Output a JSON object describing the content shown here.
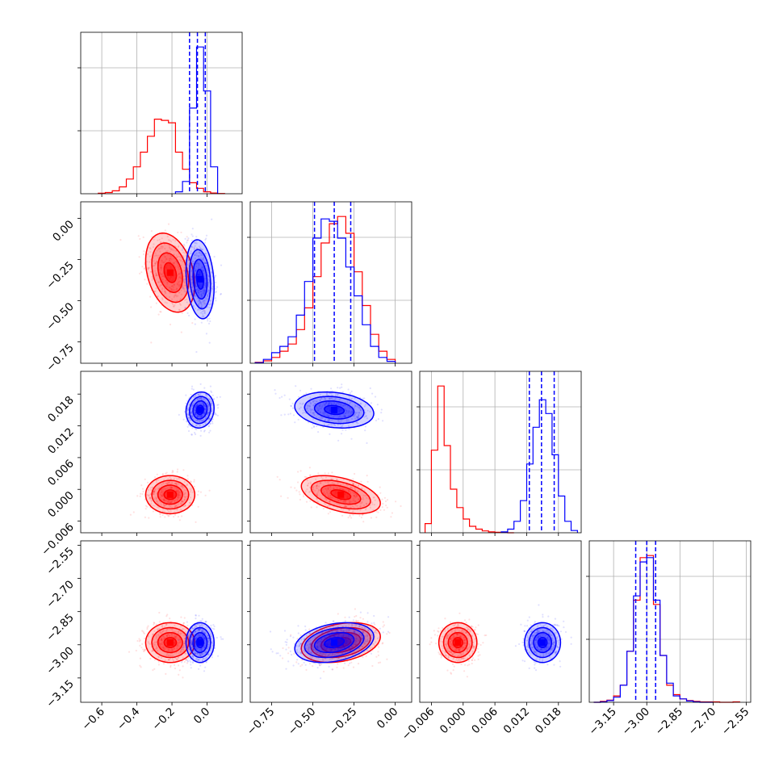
{
  "chart_data": {
    "type": "scatter",
    "title": "",
    "grid": true,
    "series_colors": {
      "red": "#ff0000",
      "blue": "#0000ff"
    },
    "parameters": [
      {
        "ticks": [
          -0.6,
          -0.4,
          -0.2,
          0.0
        ],
        "tick_labels": [
          "−0.6",
          "−0.4",
          "−0.2",
          "0.0"
        ],
        "range": [
          -0.72,
          0.2
        ]
      },
      {
        "ticks": [
          -0.75,
          -0.5,
          -0.25,
          0.0
        ],
        "tick_labels": [
          "−0.75",
          "−0.50",
          "−0.25",
          "0.00"
        ],
        "range": [
          -0.88,
          0.1
        ]
      },
      {
        "ticks": [
          -0.006,
          0.0,
          0.006,
          0.012,
          0.018
        ],
        "tick_labels": [
          "−0.006",
          "0.000",
          "0.006",
          "0.012",
          "0.018"
        ],
        "range": [
          -0.0082,
          0.0223
        ]
      },
      {
        "ticks": [
          -3.15,
          -3.0,
          -2.85,
          -2.7,
          -2.55
        ],
        "tick_labels": [
          "−3.15",
          "−3.00",
          "−2.85",
          "−2.70",
          "−2.55"
        ],
        "range": [
          -3.26,
          -2.53
        ]
      }
    ],
    "series": [
      {
        "color": "red",
        "means": [
          -0.21,
          -0.33,
          -0.001,
          -2.99
        ],
        "stds": [
          0.07,
          0.12,
          0.0018,
          0.045
        ],
        "cov_corr": {
          "1-0": -0.3,
          "2-0": 0.0,
          "2-1": -0.45,
          "3-0": 0.0,
          "3-1": 0.3,
          "3-2": 0.0
        },
        "quantiles_shown": false,
        "histograms": [
          {
            "edges": [
              -0.62,
              -0.58,
              -0.54,
              -0.5,
              -0.46,
              -0.42,
              -0.38,
              -0.34,
              -0.3,
              -0.26,
              -0.22,
              -0.18,
              -0.14,
              -0.1,
              -0.06,
              -0.02,
              0.02,
              0.06,
              0.1
            ],
            "counts": [
              2,
              5,
              12,
              28,
              60,
              110,
              170,
              235,
              305,
              300,
              290,
              170,
              100,
              45,
              22,
              8,
              3,
              1
            ]
          },
          {
            "edges": [
              -0.85,
              -0.8,
              -0.75,
              -0.7,
              -0.65,
              -0.6,
              -0.55,
              -0.5,
              -0.45,
              -0.4,
              -0.35,
              -0.3,
              -0.25,
              -0.2,
              -0.15,
              -0.1,
              -0.05,
              0.0
            ],
            "counts": [
              2,
              5,
              12,
              25,
              40,
              70,
              115,
              180,
              250,
              290,
              305,
              270,
              190,
              120,
              60,
              25,
              8
            ]
          },
          {
            "edges": [
              -0.0072,
              -0.006,
              -0.0048,
              -0.0036,
              -0.0024,
              -0.0012,
              0.0,
              0.0012,
              0.0024,
              0.0036,
              0.0048,
              0.006,
              0.0072,
              0.0084,
              0.0096
            ],
            "counts": [
              20,
              180,
              320,
              190,
              95,
              55,
              30,
              14,
              8,
              4,
              2,
              1,
              1,
              0
            ]
          },
          {
            "edges": [
              -3.24,
              -3.21,
              -3.18,
              -3.15,
              -3.12,
              -3.09,
              -3.06,
              -3.03,
              -3.0,
              -2.97,
              -2.94,
              -2.91,
              -2.88,
              -2.85,
              -2.82,
              -2.79,
              -2.76,
              -2.73,
              -2.7,
              -2.67,
              -2.64,
              -2.61,
              -2.58
            ],
            "counts": [
              0,
              2,
              5,
              15,
              40,
              120,
              240,
              340,
              345,
              230,
              110,
              40,
              18,
              8,
              4,
              2,
              1,
              1,
              1,
              0,
              0,
              1
            ]
          }
        ]
      },
      {
        "color": "blue",
        "means": [
          -0.04,
          -0.37,
          0.015,
          -2.99
        ],
        "stds": [
          0.04,
          0.12,
          0.0017,
          0.045
        ],
        "cov_corr": {
          "1-0": -0.2,
          "2-0": 0.1,
          "2-1": -0.2,
          "3-0": 0.0,
          "3-1": 0.3,
          "3-2": 0.0
        },
        "quantiles_shown": true,
        "quantiles": [
          [
            -0.1,
            -0.055,
            -0.01
          ],
          [
            -0.49,
            -0.37,
            -0.27
          ],
          [
            0.0125,
            0.0148,
            0.0172
          ],
          [
            -3.05,
            -3.0,
            -2.96
          ]
        ],
        "histograms": [
          {
            "edges": [
              -0.18,
              -0.14,
              -0.1,
              -0.06,
              -0.02,
              0.02,
              0.06
            ],
            "counts": [
              8,
              50,
              350,
              600,
              420,
              110
            ]
          },
          {
            "edges": [
              -0.85,
              -0.8,
              -0.75,
              -0.7,
              -0.65,
              -0.6,
              -0.55,
              -0.5,
              -0.45,
              -0.4,
              -0.35,
              -0.3,
              -0.25,
              -0.2,
              -0.15,
              -0.1,
              -0.05,
              0.0
            ],
            "counts": [
              1,
              8,
              22,
              35,
              55,
              100,
              170,
              260,
              300,
              295,
              260,
              200,
              140,
              80,
              35,
              12,
              4
            ]
          },
          {
            "edges": [
              0.0072,
              0.0084,
              0.0096,
              0.0108,
              0.012,
              0.0132,
              0.0144,
              0.0156,
              0.0168,
              0.018,
              0.0192,
              0.0204,
              0.0216
            ],
            "counts": [
              2,
              8,
              25,
              70,
              150,
              230,
              290,
              260,
              170,
              80,
              25,
              5
            ]
          },
          {
            "edges": [
              -3.24,
              -3.21,
              -3.18,
              -3.15,
              -3.12,
              -3.09,
              -3.06,
              -3.03,
              -3.0,
              -2.97,
              -2.94,
              -2.91,
              -2.88,
              -2.85,
              -2.82,
              -2.79,
              -2.76,
              -2.73,
              -2.7
            ],
            "counts": [
              0,
              1,
              4,
              12,
              40,
              120,
              250,
              330,
              340,
              240,
              110,
              45,
              15,
              8,
              3,
              1,
              0,
              0
            ]
          }
        ]
      }
    ]
  }
}
